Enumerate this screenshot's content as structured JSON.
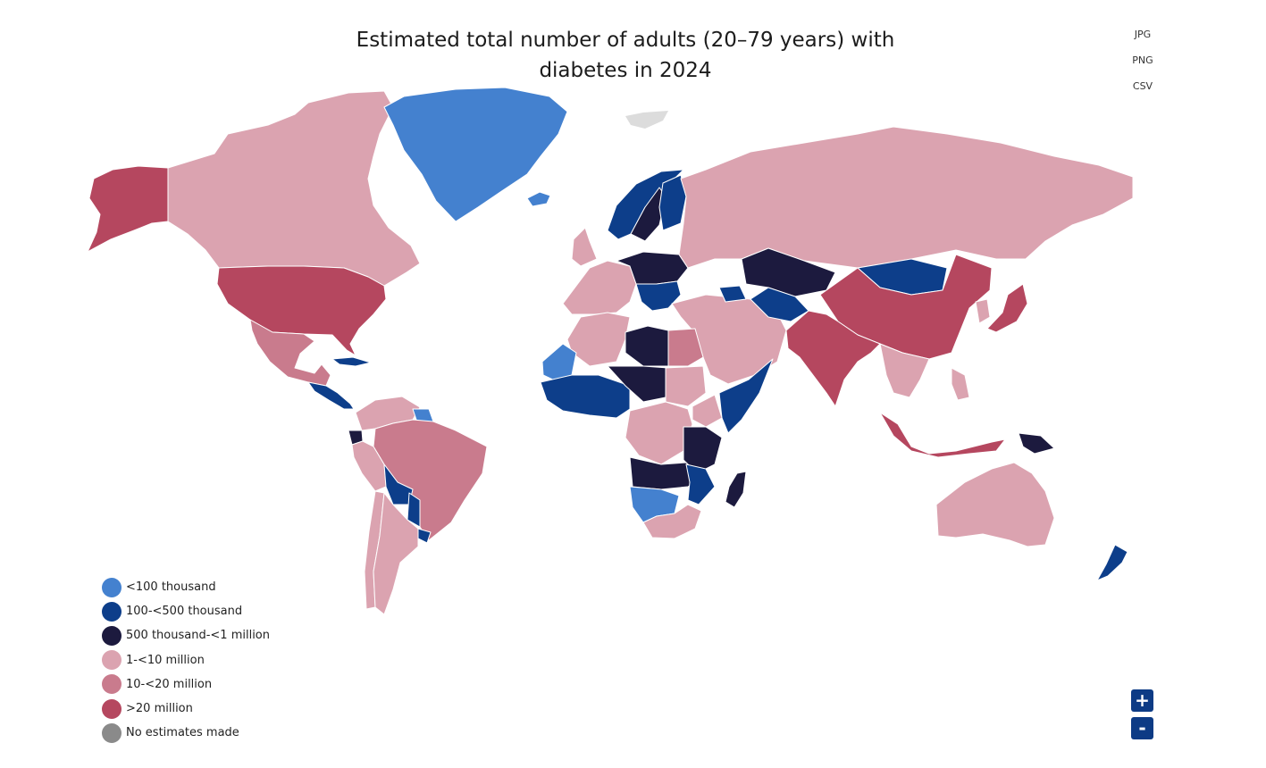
{
  "title": {
    "line1": "Estimated total number of adults (20–79 years) with",
    "line2": "diabetes in 2024"
  },
  "export_menu": [
    "JPG",
    "PNG",
    "CSV"
  ],
  "legend": [
    {
      "label": "<100 thousand",
      "color": "#4481cf"
    },
    {
      "label": "100-<500 thousand",
      "color": "#0d3e8a"
    },
    {
      "label": "500 thousand-<1 million",
      "color": "#1c1a3e"
    },
    {
      "label": "1-<10 million",
      "color": "#dba3b0"
    },
    {
      "label": "10-<20 million",
      "color": "#c97b8d"
    },
    {
      "label": ">20 million",
      "color": "#b5475f"
    },
    {
      "label": "No estimates made",
      "color": "#8a8a8a"
    }
  ],
  "zoom": {
    "in_label": "+",
    "out_label": "-"
  },
  "colors": {
    "border": "#ffffff",
    "no_data_region": "#dcdcdc",
    "zoom_button": "#0d3b85"
  },
  "regions": [
    {
      "name": "alaska",
      "level": 5
    },
    {
      "name": "canada",
      "level": 3
    },
    {
      "name": "greenland",
      "level": 0
    },
    {
      "name": "iceland",
      "level": 0
    },
    {
      "name": "united-states",
      "level": 5
    },
    {
      "name": "mexico",
      "level": 4
    },
    {
      "name": "central-america",
      "level": 1
    },
    {
      "name": "cuba",
      "level": 1
    },
    {
      "name": "colombia-venezuela",
      "level": 3
    },
    {
      "name": "guyana-suriname",
      "level": 0
    },
    {
      "name": "ecuador",
      "level": 2
    },
    {
      "name": "brazil",
      "level": 4
    },
    {
      "name": "peru",
      "level": 3
    },
    {
      "name": "bolivia",
      "level": 1
    },
    {
      "name": "paraguay",
      "level": 1
    },
    {
      "name": "uruguay",
      "level": 1
    },
    {
      "name": "chile",
      "level": 3
    },
    {
      "name": "argentina",
      "level": 3
    },
    {
      "name": "norway",
      "level": 1
    },
    {
      "name": "sweden",
      "level": 2
    },
    {
      "name": "finland",
      "level": 1
    },
    {
      "name": "uk-ireland",
      "level": 3
    },
    {
      "name": "western-europe",
      "level": 3
    },
    {
      "name": "central-europe",
      "level": 2
    },
    {
      "name": "balkans",
      "level": 1
    },
    {
      "name": "russia",
      "level": 3
    },
    {
      "name": "turkey-middle-east",
      "level": 3
    },
    {
      "name": "caucasus",
      "level": 1
    },
    {
      "name": "kazakhstan",
      "level": 2
    },
    {
      "name": "central-asia",
      "level": 1
    },
    {
      "name": "mongolia",
      "level": 1
    },
    {
      "name": "china",
      "level": 5
    },
    {
      "name": "japan",
      "level": 5
    },
    {
      "name": "korea",
      "level": 3
    },
    {
      "name": "pakistan-india",
      "level": 5
    },
    {
      "name": "southeast-asia",
      "level": 3
    },
    {
      "name": "indonesia",
      "level": 5
    },
    {
      "name": "philippines",
      "level": 3
    },
    {
      "name": "papua-new-guinea",
      "level": 2
    },
    {
      "name": "australia",
      "level": 3
    },
    {
      "name": "new-zealand",
      "level": 1
    },
    {
      "name": "morocco-algeria",
      "level": 3
    },
    {
      "name": "western-sahara-mauritania",
      "level": 0
    },
    {
      "name": "libya",
      "level": 2
    },
    {
      "name": "egypt",
      "level": 4
    },
    {
      "name": "west-africa",
      "level": 1
    },
    {
      "name": "niger-chad",
      "level": 2
    },
    {
      "name": "sudan",
      "level": 3
    },
    {
      "name": "horn-of-africa",
      "level": 1
    },
    {
      "name": "ethiopia",
      "level": 3
    },
    {
      "name": "central-africa",
      "level": 3
    },
    {
      "name": "east-africa",
      "level": 2
    },
    {
      "name": "angola-zambia",
      "level": 2
    },
    {
      "name": "namibia-botswana",
      "level": 0
    },
    {
      "name": "mozambique-malawi",
      "level": 1
    },
    {
      "name": "south-africa",
      "level": 3
    },
    {
      "name": "madagascar",
      "level": 2
    }
  ]
}
